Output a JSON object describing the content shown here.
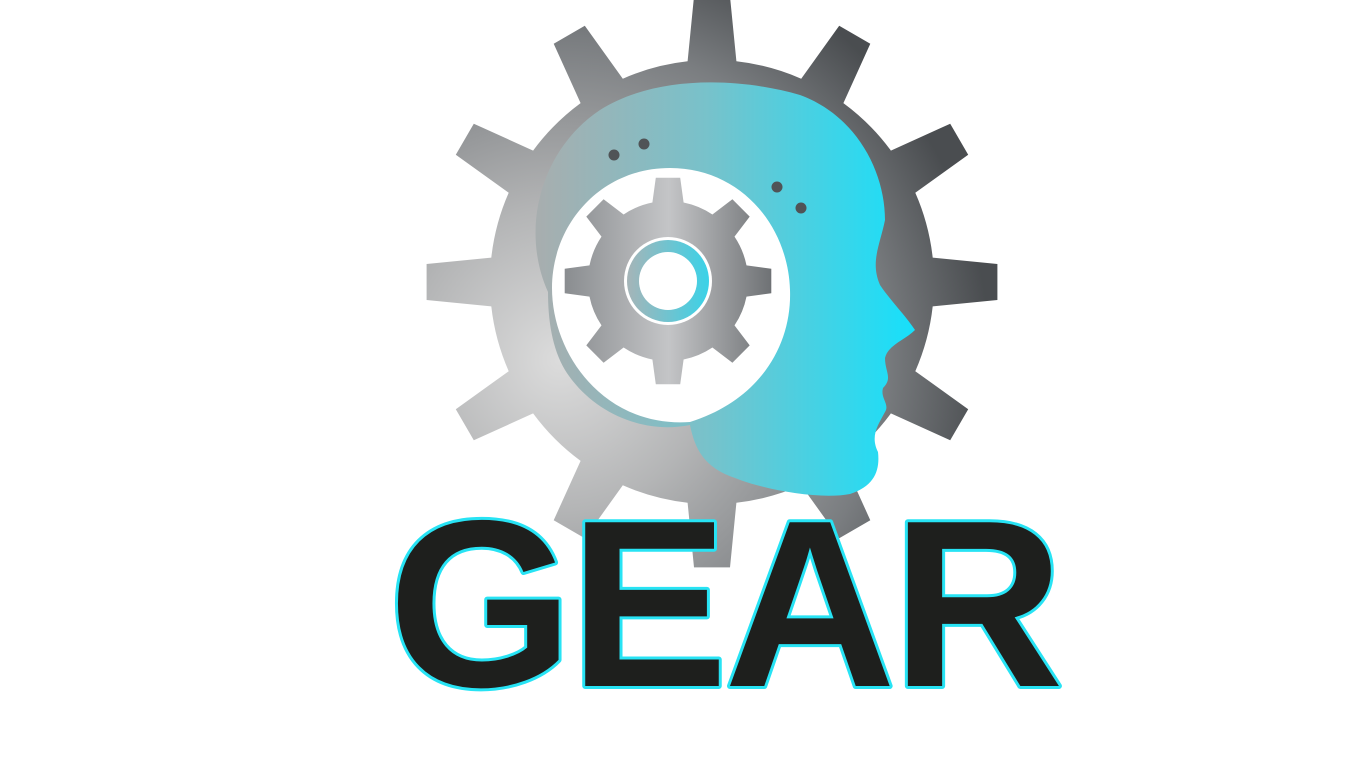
{
  "logo": {
    "wordmark": "GEAR",
    "icon": "gear-head-icon",
    "colors": {
      "background": "#ffffff",
      "wordmark_fill": "#1e1f1d",
      "wordmark_outline": "#27e3f4",
      "gear_light": "#d9d9d9",
      "gear_dark": "#4a4d50",
      "head_cyan": "#1fdcf7",
      "head_muted": "#9ab3b8",
      "dots": "#505356"
    }
  }
}
